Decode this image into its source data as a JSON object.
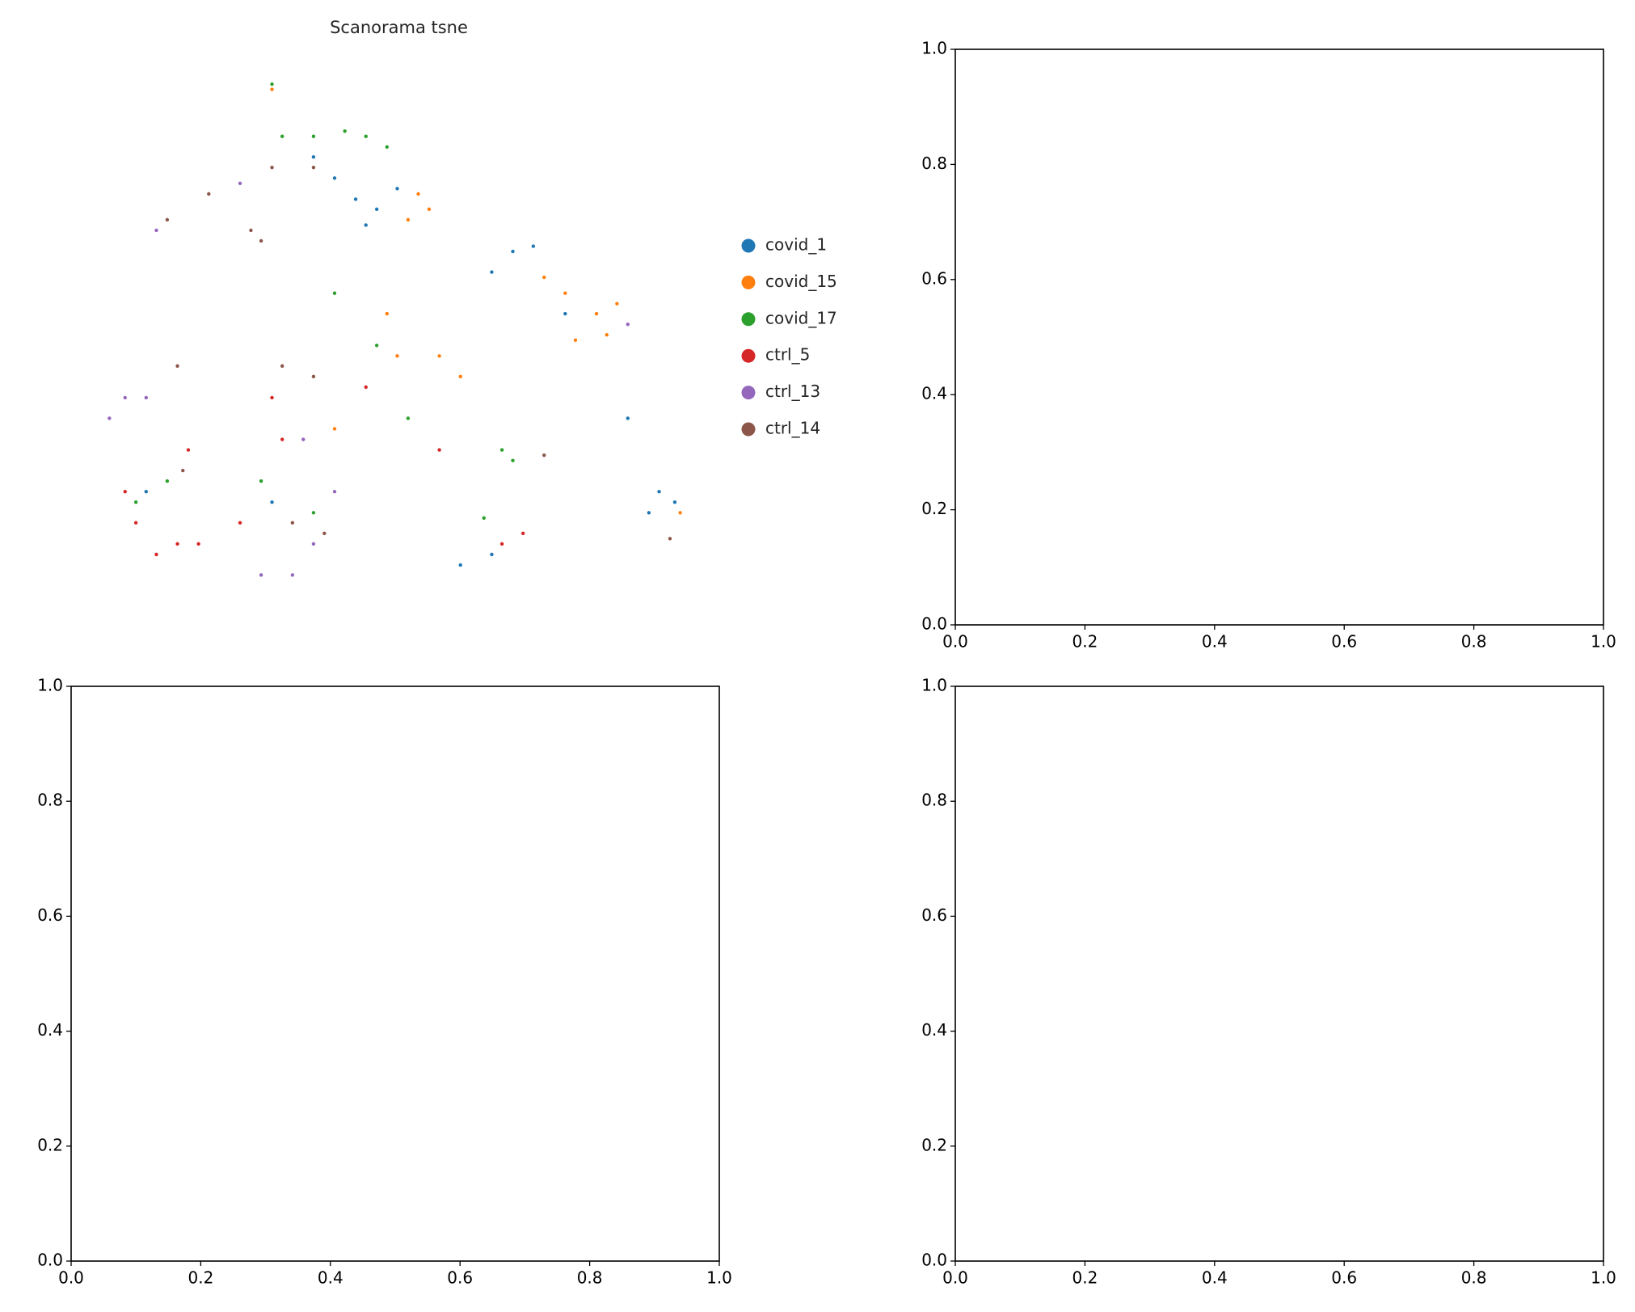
{
  "chart_data": [
    {
      "type": "scatter",
      "title": "Scanorama tsne",
      "xlim": [
        0,
        100
      ],
      "ylim": [
        0,
        100
      ],
      "legend": "right",
      "series": [
        {
          "name": "covid_1",
          "color": "#1f77b4",
          "x": [
            40,
            43.5,
            47,
            36.5,
            50.4,
            69.6,
            73,
            66.1,
            93.9,
            96.5,
            92.2,
            66.1,
            60.9,
            45.2,
            88.7,
            78.3,
            8.7,
            29.6
          ],
          "values": [
            80.2,
            76.2,
            74.3,
            84.2,
            78.2,
            66.3,
            67.3,
            62.4,
            20.8,
            18.8,
            16.8,
            8.9,
            6.9,
            71.3,
            34.7,
            54.5,
            20.8,
            18.8
          ]
        },
        {
          "name": "covid_15",
          "color": "#ff7f0e",
          "x": [
            53.9,
            55.7,
            52.2,
            78.3,
            83.5,
            85.2,
            80,
            74.8,
            57.4,
            50.4,
            60.9,
            48.7,
            97.4,
            29.6,
            40,
            86.9
          ],
          "values": [
            77.2,
            74.3,
            72.3,
            58.4,
            54.5,
            50.5,
            49.5,
            61.4,
            46.5,
            46.5,
            42.6,
            54.5,
            16.8,
            97,
            32.7,
            56.4
          ]
        },
        {
          "name": "covid_17",
          "color": "#2ca02c",
          "x": [
            45.2,
            41.7,
            48.7,
            36.5,
            29.6,
            40,
            67.8,
            69.6,
            64.8,
            7,
            12.2,
            36.5,
            27.8,
            52.2,
            47,
            31.3
          ],
          "values": [
            88.1,
            89.1,
            86.1,
            88.1,
            98,
            58.4,
            28.7,
            26.7,
            15.8,
            18.8,
            22.8,
            16.8,
            22.8,
            34.7,
            48.5,
            88.1
          ]
        },
        {
          "name": "ctrl_5",
          "color": "#d62728",
          "x": [
            5.2,
            10.4,
            7,
            13.9,
            17.4,
            29.6,
            31.3,
            71.3,
            67.8,
            24.3,
            15.7,
            57.4,
            45.2
          ],
          "values": [
            20.8,
            8.9,
            14.9,
            10.9,
            10.9,
            38.6,
            30.7,
            12.9,
            10.9,
            14.9,
            28.7,
            28.7,
            40.6
          ]
        },
        {
          "name": "ctrl_13",
          "color": "#9467bd",
          "x": [
            5.2,
            2.6,
            27.8,
            33,
            36.5,
            10.4,
            24.3,
            40,
            34.8,
            88.7,
            8.7
          ],
          "values": [
            38.6,
            34.7,
            5,
            5,
            10.9,
            70.3,
            79.2,
            20.8,
            30.7,
            52.5,
            38.6
          ]
        },
        {
          "name": "ctrl_14",
          "color": "#8c564b",
          "x": [
            12.2,
            19.1,
            26.1,
            29.6,
            36.5,
            13.9,
            31.3,
            36.5,
            38.3,
            33,
            95.7,
            74.8,
            14.8,
            27.8
          ],
          "values": [
            72.3,
            77.2,
            70.3,
            82.2,
            82.2,
            44.6,
            44.6,
            42.6,
            12.9,
            14.9,
            11.9,
            27.7,
            24.8,
            68.3
          ]
        }
      ]
    },
    {
      "type": "axes",
      "xlim": [
        0,
        1
      ],
      "ylim": [
        0,
        1
      ],
      "xticks": [
        {
          "value": 0,
          "label": "0.0"
        },
        {
          "value": 0.2,
          "label": "0.2"
        },
        {
          "value": 0.4,
          "label": "0.4"
        },
        {
          "value": 0.6,
          "label": "0.6"
        },
        {
          "value": 0.8,
          "label": "0.8"
        },
        {
          "value": 1,
          "label": "1.0"
        }
      ],
      "yticks": [
        {
          "value": 0,
          "label": "0.0"
        },
        {
          "value": 0.2,
          "label": "0.2"
        },
        {
          "value": 0.4,
          "label": "0.4"
        },
        {
          "value": 0.6,
          "label": "0.6"
        },
        {
          "value": 0.8,
          "label": "0.8"
        },
        {
          "value": 1,
          "label": "1.0"
        }
      ]
    },
    {
      "type": "axes",
      "xlim": [
        0,
        1
      ],
      "ylim": [
        0,
        1
      ],
      "xticks": [
        {
          "value": 0,
          "label": "0.0"
        },
        {
          "value": 0.2,
          "label": "0.2"
        },
        {
          "value": 0.4,
          "label": "0.4"
        },
        {
          "value": 0.6,
          "label": "0.6"
        },
        {
          "value": 0.8,
          "label": "0.8"
        },
        {
          "value": 1,
          "label": "1.0"
        }
      ],
      "yticks": [
        {
          "value": 0,
          "label": "0.0"
        },
        {
          "value": 0.2,
          "label": "0.2"
        },
        {
          "value": 0.4,
          "label": "0.4"
        },
        {
          "value": 0.6,
          "label": "0.6"
        },
        {
          "value": 0.8,
          "label": "0.8"
        },
        {
          "value": 1,
          "label": "1.0"
        }
      ]
    },
    {
      "type": "axes",
      "xlim": [
        0,
        1
      ],
      "ylim": [
        0,
        1
      ],
      "xticks": [
        {
          "value": 0,
          "label": "0.0"
        },
        {
          "value": 0.2,
          "label": "0.2"
        },
        {
          "value": 0.4,
          "label": "0.4"
        },
        {
          "value": 0.6,
          "label": "0.6"
        },
        {
          "value": 0.8,
          "label": "0.8"
        },
        {
          "value": 1,
          "label": "1.0"
        }
      ],
      "yticks": [
        {
          "value": 0,
          "label": "0.0"
        },
        {
          "value": 0.2,
          "label": "0.2"
        },
        {
          "value": 0.4,
          "label": "0.4"
        },
        {
          "value": 0.6,
          "label": "0.6"
        },
        {
          "value": 0.8,
          "label": "0.8"
        },
        {
          "value": 1,
          "label": "1.0"
        }
      ]
    }
  ]
}
